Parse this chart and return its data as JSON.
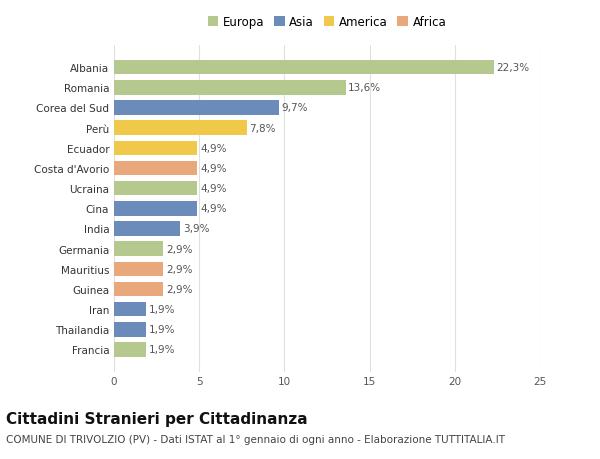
{
  "categories": [
    "Albania",
    "Romania",
    "Corea del Sud",
    "Perù",
    "Ecuador",
    "Costa d'Avorio",
    "Ucraina",
    "Cina",
    "India",
    "Germania",
    "Mauritius",
    "Guinea",
    "Iran",
    "Thailandia",
    "Francia"
  ],
  "values": [
    22.3,
    13.6,
    9.7,
    7.8,
    4.9,
    4.9,
    4.9,
    4.9,
    3.9,
    2.9,
    2.9,
    2.9,
    1.9,
    1.9,
    1.9
  ],
  "labels": [
    "22,3%",
    "13,6%",
    "9,7%",
    "7,8%",
    "4,9%",
    "4,9%",
    "4,9%",
    "4,9%",
    "3,9%",
    "2,9%",
    "2,9%",
    "2,9%",
    "1,9%",
    "1,9%",
    "1,9%"
  ],
  "continents": [
    "Europa",
    "Europa",
    "Asia",
    "America",
    "America",
    "Africa",
    "Europa",
    "Asia",
    "Asia",
    "Europa",
    "Africa",
    "Africa",
    "Asia",
    "Asia",
    "Europa"
  ],
  "colors": {
    "Europa": "#b5c98e",
    "Asia": "#6b8cba",
    "America": "#f0c84a",
    "Africa": "#e8a87c"
  },
  "legend_order": [
    "Europa",
    "Asia",
    "America",
    "Africa"
  ],
  "bg_color": "#ffffff",
  "grid_color": "#e0e0e0",
  "xlim": [
    0,
    25
  ],
  "xticks": [
    0,
    5,
    10,
    15,
    20,
    25
  ],
  "title": "Cittadini Stranieri per Cittadinanza",
  "subtitle": "COMUNE DI TRIVOLZIO (PV) - Dati ISTAT al 1° gennaio di ogni anno - Elaborazione TUTTITALIA.IT",
  "title_fontsize": 11,
  "subtitle_fontsize": 7.5,
  "label_fontsize": 7.5,
  "tick_fontsize": 7.5,
  "legend_fontsize": 8.5
}
